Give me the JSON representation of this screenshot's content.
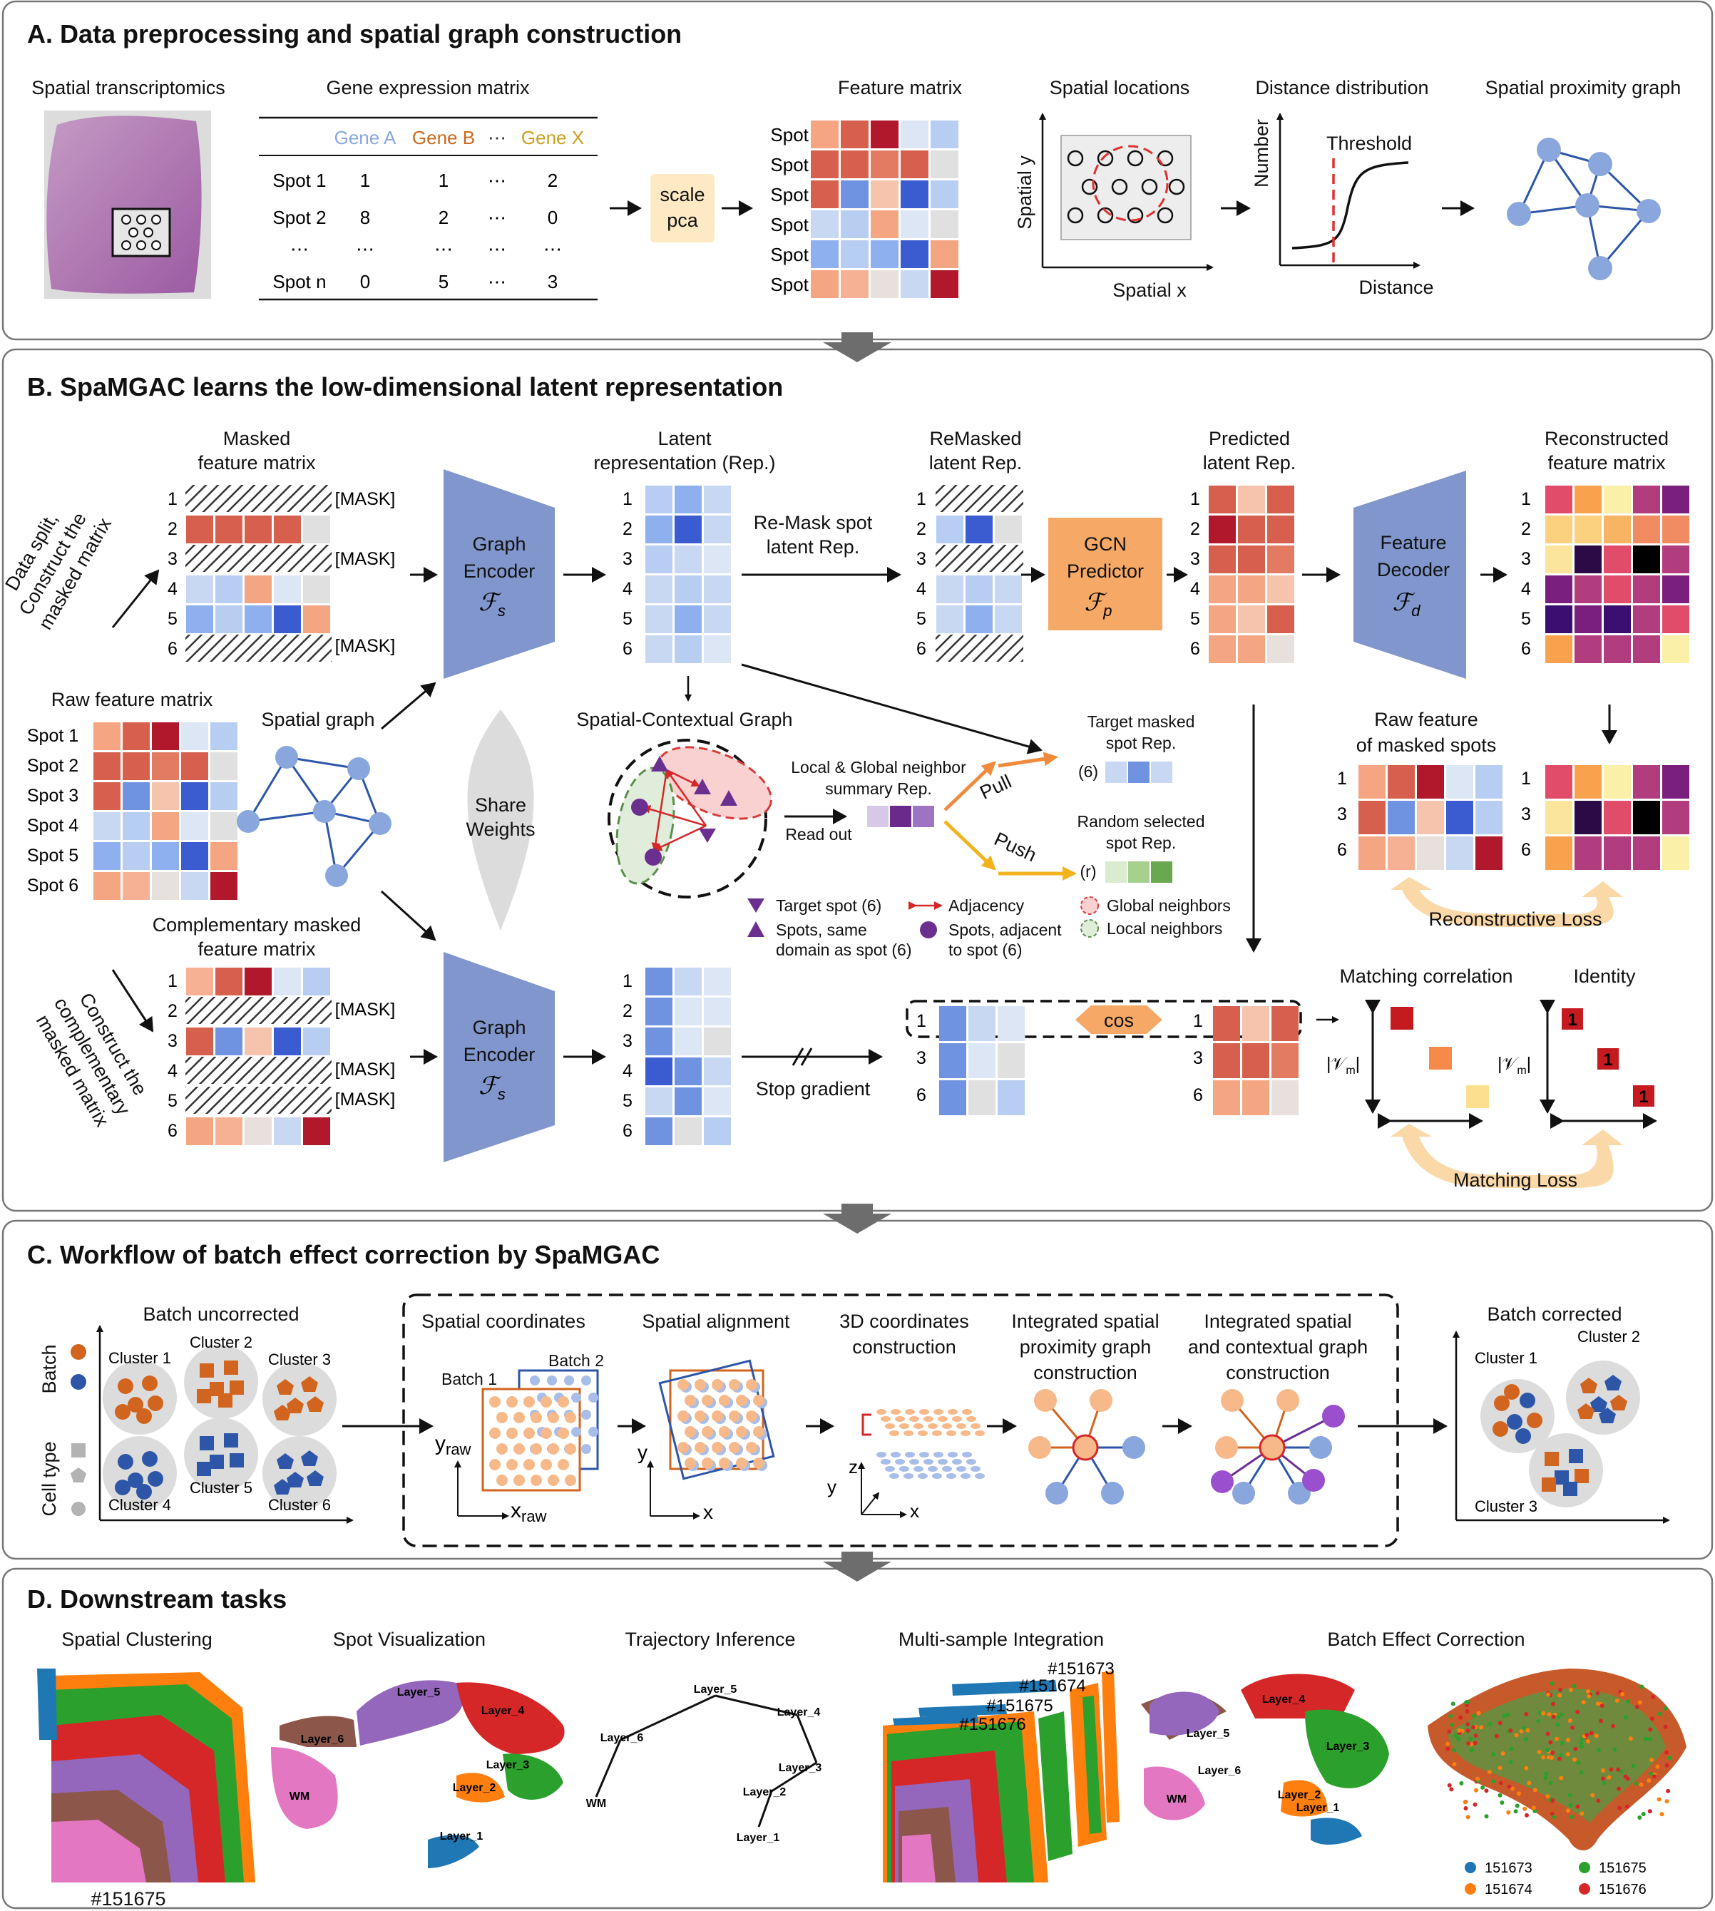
{
  "panels": {
    "a": {
      "title": "A. Data preprocessing and spatial graph construction"
    },
    "b": {
      "title": "B. SpaMGAC learns the low-dimensional latent representation"
    },
    "c": {
      "title": "C. Workflow of batch effect correction by SpaMGAC"
    },
    "d": {
      "title": "D. Downstream tasks"
    }
  },
  "a": {
    "spatial_transcriptomics": "Spatial transcriptomics",
    "gene_matrix_title": "Gene expression matrix",
    "gene_headers": [
      "Gene A",
      "Gene B",
      "⋯",
      "Gene X"
    ],
    "gene_rows": [
      {
        "name": "Spot 1",
        "v": [
          "1",
          "1",
          "⋯",
          "2"
        ]
      },
      {
        "name": "Spot 2",
        "v": [
          "8",
          "2",
          "⋯",
          "0"
        ]
      },
      {
        "name": "⋯",
        "v": [
          "⋯",
          "⋯",
          "⋯",
          "⋯"
        ]
      },
      {
        "name": "Spot n",
        "v": [
          "0",
          "5",
          "⋯",
          "3"
        ]
      }
    ],
    "scale_line1": "scale",
    "scale_line2": "pca",
    "feature_matrix_title": "Feature matrix",
    "spots": [
      "Spot 1",
      "Spot 2",
      "Spot 3",
      "Spot 4",
      "Spot 5",
      "Spot 6"
    ],
    "spatial_locations_title": "Spatial locations",
    "spatial_y": "Spatial y",
    "spatial_x": "Spatial x",
    "distance_distribution_title": "Distance distribution",
    "number": "Number",
    "distance": "Distance",
    "threshold": "Threshold",
    "proximity_graph_title": "Spatial proximity graph"
  },
  "b": {
    "masked_line1": "Masked",
    "masked_line2": "feature matrix",
    "mask_token": "[MASK]",
    "row_numbers": [
      "1",
      "2",
      "3",
      "4",
      "5",
      "6"
    ],
    "data_split_line1": "Data split,",
    "data_split_line2": "Construct the",
    "data_split_line3": "masked matrix",
    "raw_feature_matrix": "Raw feature matrix",
    "spatial_graph": "Spatial graph",
    "share_line1": "Share",
    "share_line2": "Weights",
    "graph_encoder_line1": "Graph",
    "graph_encoder_line2": "Encoder",
    "fs": "ℱ",
    "fs_sub": "s",
    "latent_line1": "Latent",
    "latent_line2": "representation (Rep.)",
    "remask_line1": "Re-Mask spot",
    "remask_line2": "latent Rep.",
    "remasked_line1": "ReMasked",
    "remasked_line2": "latent Rep.",
    "gcn_line1": "GCN",
    "gcn_line2": "Predictor",
    "fp_sub": "p",
    "predicted_line1": "Predicted",
    "predicted_line2": "latent Rep.",
    "decoder_line1": "Feature",
    "decoder_line2": "Decoder",
    "fd_sub": "d",
    "reconstructed_line1": "Reconstructed",
    "reconstructed_line2": "feature matrix",
    "scg_title": "Spatial-Contextual Graph",
    "summary_line1": "Local & Global neighbor",
    "summary_line2": "summary Rep.",
    "read_out": "Read out",
    "pull": "Pull",
    "push": "Push",
    "target_line1": "Target masked",
    "target_line2": "spot Rep.",
    "target_tag": "(6)",
    "random_line1": "Random selected",
    "random_line2": "spot Rep.",
    "random_tag": "(r)",
    "legend_target_spot": "Target spot (6)",
    "legend_same_domain_line1": "Spots, same",
    "legend_same_domain_line2": "domain as spot (6)",
    "legend_adjacency": "Adjacency",
    "legend_adjacent_line1": "Spots, adjacent",
    "legend_adjacent_line2": "to spot (6)",
    "legend_global": "Global neighbors",
    "legend_local": "Local neighbors",
    "raw_masked_line1": "Raw feature",
    "raw_masked_line2": "of masked spots",
    "masked_rows": [
      "1",
      "3",
      "6"
    ],
    "reconstructive_loss": "Reconstructive Loss",
    "comp_line1": "Complementary masked",
    "comp_line2": "feature matrix",
    "comp_arrow_line1": "Construct the",
    "comp_arrow_line2": "complementary",
    "comp_arrow_line3": "masked matrix",
    "stop_gradient": "Stop gradient",
    "cos": "cos",
    "matching_correlation": "Matching correlation",
    "identity": "Identity",
    "vm_label": "|𝒱",
    "vm_sub": "m",
    "vm_end": "|",
    "identity_one": "1",
    "matching_loss": "Matching Loss"
  },
  "c": {
    "batch": "Batch",
    "cell_type": "Cell type",
    "batch_uncorrected": "Batch uncorrected",
    "clusters": [
      "Cluster 1",
      "Cluster 2",
      "Cluster 3",
      "Cluster 4",
      "Cluster 5",
      "Cluster 6"
    ],
    "spatial_coordinates": "Spatial coordinates",
    "batch1": "Batch 1",
    "batch2": "Batch 2",
    "y_raw_y": "y",
    "y_raw_sub": "raw",
    "x_raw_x": "x",
    "x_raw_sub": "raw",
    "spatial_alignment": "Spatial alignment",
    "y": "y",
    "x": "x",
    "z": "z",
    "coords3d_line1": "3D coordinates",
    "coords3d_line2": "construction",
    "isp_line1": "Integrated spatial",
    "isp_line2": "proximity graph",
    "isp_line3": "construction",
    "isc_line1": "Integrated spatial",
    "isc_line2": "and contextual graph",
    "isc_line3": "construction",
    "batch_corrected": "Batch corrected",
    "corrected_clusters": [
      "Cluster 1",
      "Cluster 2",
      "Cluster 3"
    ]
  },
  "d": {
    "spatial_clustering": "Spatial Clustering",
    "sample_id": "#151675",
    "spot_visualization": "Spot Visualization",
    "trajectory_inference": "Trajectory Inference",
    "multi_sample": "Multi-sample Integration",
    "batch_effect": "Batch Effect Correction",
    "layers": [
      "Layer_1",
      "Layer_2",
      "Layer_3",
      "Layer_4",
      "Layer_5",
      "Layer_6",
      "WM"
    ],
    "samples": [
      "#151673",
      "#151674",
      "#151675",
      "#151676"
    ],
    "legend": [
      {
        "label": "151673",
        "color": "#1f77b4"
      },
      {
        "label": "151675",
        "color": "#2ca02c"
      },
      {
        "label": "151674",
        "color": "#ff7f0e"
      },
      {
        "label": "151676",
        "color": "#d62728"
      }
    ]
  },
  "colors": {
    "encoder": "#8096cc",
    "gcn": "#f6a966",
    "scale_box": "#fde9c4",
    "node": "#8aa7dd",
    "batch1": "#d1641e",
    "batch2": "#2d56a8",
    "loss_arrow": "#fbd8a7",
    "wm": "#e377c2",
    "layer1": "#1f77b4",
    "layer2": "#ff7f0e",
    "layer3": "#2ca02c",
    "layer4": "#d62728",
    "layer5": "#9467bd",
    "layer6": "#8c564b"
  }
}
